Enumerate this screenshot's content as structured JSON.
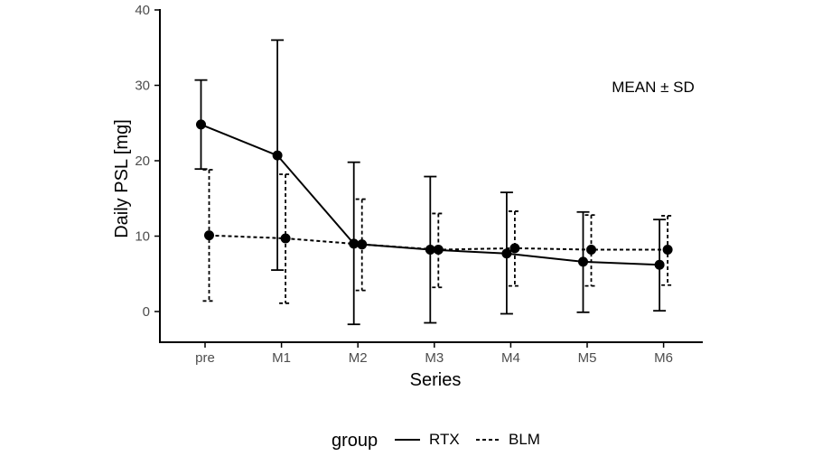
{
  "chart_data": {
    "type": "line",
    "title": "",
    "xlabel": "Series",
    "ylabel": "Daily PSL [mg]",
    "annotation": "MEAN ± SD",
    "categories": [
      "pre",
      "M1",
      "M2",
      "M3",
      "M4",
      "M5",
      "M6"
    ],
    "ylim": [
      -4,
      40
    ],
    "yticks": [
      0,
      10,
      20,
      30,
      40
    ],
    "legend": {
      "title": "group",
      "position": "bottom"
    },
    "series": [
      {
        "name": "RTX",
        "line_style": "solid",
        "values": [
          24.8,
          20.7,
          9.0,
          8.2,
          7.7,
          6.6,
          6.2
        ],
        "sd_lower": [
          18.9,
          5.5,
          -1.7,
          -1.5,
          -0.3,
          -0.1,
          0.1
        ],
        "sd_upper": [
          30.7,
          36.0,
          19.8,
          17.9,
          15.8,
          13.2,
          12.2
        ]
      },
      {
        "name": "BLM",
        "line_style": "dashed",
        "values": [
          10.1,
          9.7,
          8.9,
          8.2,
          8.4,
          8.2,
          8.2
        ],
        "sd_lower": [
          1.4,
          1.1,
          2.8,
          3.2,
          3.4,
          3.4,
          3.5
        ],
        "sd_upper": [
          18.8,
          18.2,
          14.9,
          13.0,
          13.3,
          12.8,
          12.7
        ]
      }
    ]
  }
}
